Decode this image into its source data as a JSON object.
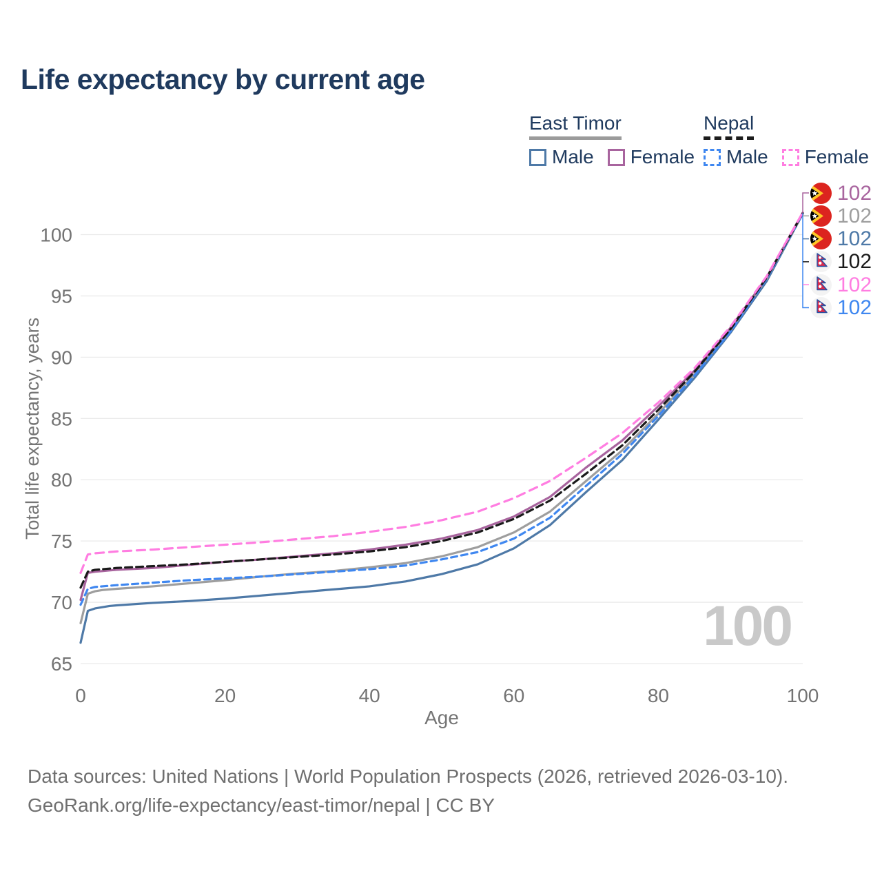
{
  "title": "Life expectancy by current age",
  "watermark": "100",
  "legend": {
    "groups": [
      {
        "country": "East Timor",
        "underline_style": "solid",
        "underline_color": "#9b9b9b",
        "items": [
          {
            "label": "Male",
            "color": "#4e79a7",
            "dashed": false
          },
          {
            "label": "Female",
            "color": "#a8649e",
            "dashed": false
          }
        ]
      },
      {
        "country": "Nepal",
        "underline_style": "dashed",
        "underline_color": "#1c1c1c",
        "items": [
          {
            "label": "Male",
            "color": "#3f87f0",
            "dashed": true
          },
          {
            "label": "Female",
            "color": "#ff7de1",
            "dashed": true
          }
        ]
      }
    ]
  },
  "chart_data": {
    "type": "line",
    "title": "Life expectancy by current age",
    "xlabel": "Age",
    "ylabel": "Total life expectancy, years",
    "x_ticks": [
      0,
      20,
      40,
      60,
      80,
      100
    ],
    "y_ticks": [
      65,
      70,
      75,
      80,
      85,
      90,
      95,
      100
    ],
    "xlim": [
      0,
      100
    ],
    "ylim": [
      64.5,
      103
    ],
    "grid": "horizontal",
    "legend_position": "top-right",
    "x": [
      0,
      1,
      2,
      3,
      4,
      5,
      10,
      15,
      20,
      25,
      30,
      35,
      40,
      45,
      50,
      55,
      60,
      65,
      70,
      75,
      80,
      85,
      90,
      95,
      100
    ],
    "series": [
      {
        "id": "east-timor-male",
        "name": "East Timor Male",
        "color": "#4e79a7",
        "dash": null,
        "values": [
          66.7,
          69.3,
          69.5,
          69.6,
          69.7,
          69.75,
          69.95,
          70.1,
          70.3,
          70.55,
          70.8,
          71.05,
          71.3,
          71.7,
          72.3,
          73.1,
          74.4,
          76.3,
          79.0,
          81.6,
          84.9,
          88.3,
          92.0,
          96.2,
          101.7
        ]
      },
      {
        "id": "east-timor-both",
        "name": "East Timor Both sexes",
        "color": "#9e9e9e",
        "dash": null,
        "values": [
          68.3,
          70.7,
          70.9,
          71.0,
          71.05,
          71.1,
          71.3,
          71.55,
          71.8,
          72.1,
          72.35,
          72.55,
          72.85,
          73.2,
          73.75,
          74.5,
          75.7,
          77.4,
          79.9,
          82.4,
          85.4,
          88.6,
          92.2,
          96.4,
          101.7
        ]
      },
      {
        "id": "nepal-male",
        "name": "Nepal Male",
        "color": "#3f87f0",
        "dash": "9 6",
        "values": [
          69.8,
          71.1,
          71.25,
          71.3,
          71.35,
          71.4,
          71.6,
          71.8,
          71.95,
          72.1,
          72.3,
          72.5,
          72.7,
          73.0,
          73.5,
          74.1,
          75.2,
          76.9,
          79.5,
          82.1,
          85.2,
          88.5,
          92.1,
          96.4,
          101.7
        ]
      },
      {
        "id": "east-timor-female",
        "name": "East Timor Female",
        "color": "#a8649e",
        "dash": null,
        "values": [
          70.2,
          72.4,
          72.5,
          72.55,
          72.6,
          72.65,
          72.8,
          73.05,
          73.3,
          73.5,
          73.75,
          74.0,
          74.3,
          74.7,
          75.2,
          75.9,
          77.0,
          78.6,
          81.0,
          83.2,
          86.0,
          88.9,
          92.4,
          96.5,
          101.8
        ]
      },
      {
        "id": "nepal-both",
        "name": "Nepal Both sexes",
        "color": "#1a1a1a",
        "dash": "10 6",
        "values": [
          71.2,
          72.5,
          72.65,
          72.7,
          72.75,
          72.8,
          72.95,
          73.1,
          73.3,
          73.5,
          73.7,
          73.9,
          74.15,
          74.5,
          75.0,
          75.7,
          76.8,
          78.3,
          80.5,
          82.8,
          85.7,
          88.8,
          92.3,
          96.5,
          101.75
        ]
      },
      {
        "id": "nepal-female",
        "name": "Nepal Female",
        "color": "#ff7de1",
        "dash": "12 8",
        "values": [
          72.4,
          73.9,
          74.0,
          74.05,
          74.1,
          74.15,
          74.3,
          74.5,
          74.7,
          74.9,
          75.15,
          75.4,
          75.75,
          76.15,
          76.7,
          77.4,
          78.5,
          79.9,
          81.8,
          83.8,
          86.3,
          89.1,
          92.5,
          96.6,
          101.8
        ]
      }
    ]
  },
  "right_labels": [
    {
      "flag": "east-timor",
      "value": "102",
      "color": "#a8649e"
    },
    {
      "flag": "east-timor",
      "value": "102",
      "color": "#9e9e9e"
    },
    {
      "flag": "east-timor",
      "value": "102",
      "color": "#4e79a7"
    },
    {
      "flag": "nepal",
      "value": "102",
      "color": "#1a1a1a"
    },
    {
      "flag": "nepal",
      "value": "102",
      "color": "#ff7de1"
    },
    {
      "flag": "nepal",
      "value": "102",
      "color": "#3f87f0"
    }
  ],
  "footer": {
    "line1": "Data sources: United Nations | World Population Prospects (2026, retrieved 2026-03-10).",
    "line2": "GeoRank.org/life-expectancy/east-timor/nepal | CC BY"
  }
}
